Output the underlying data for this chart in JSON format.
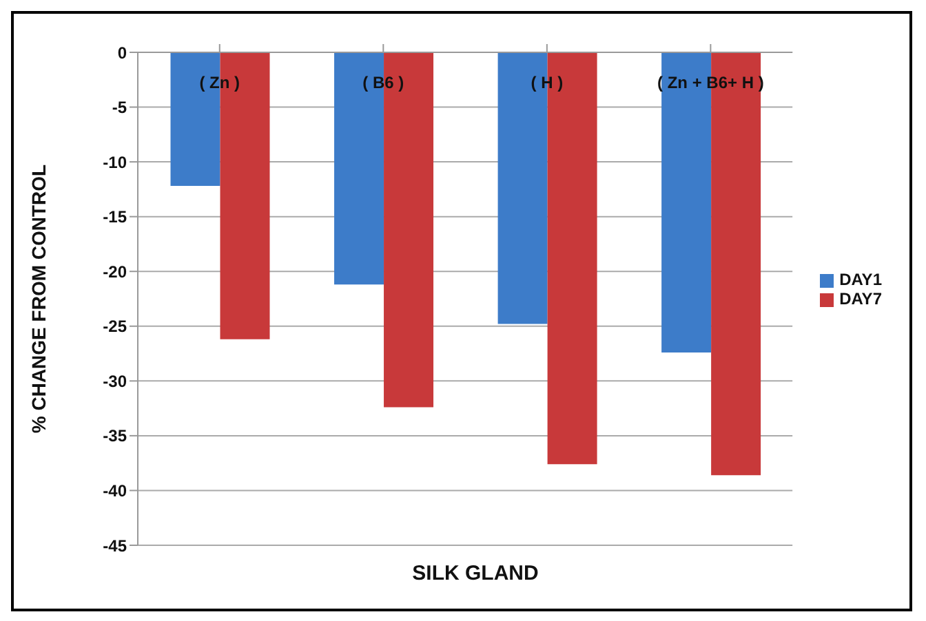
{
  "chart_data": {
    "type": "bar",
    "xlabel": "SILK GLAND",
    "ylabel": "% CHANGE FROM CONTROL",
    "categories": [
      "( Zn )",
      "( B6 )",
      "( H )",
      "( Zn + B6+ H )"
    ],
    "series": [
      {
        "name": "DAY1",
        "color": "#3d7cc9",
        "values": [
          -12.2,
          -21.2,
          -24.8,
          -27.4
        ]
      },
      {
        "name": "DAY7",
        "color": "#c8393a",
        "values": [
          -26.2,
          -32.4,
          -37.6,
          -38.6
        ]
      }
    ],
    "ylim": [
      -45,
      0
    ],
    "yticks": [
      -45,
      -40,
      -35,
      -30,
      -25,
      -20,
      -15,
      -10,
      -5,
      0
    ],
    "grid": "y",
    "legend": "right"
  }
}
